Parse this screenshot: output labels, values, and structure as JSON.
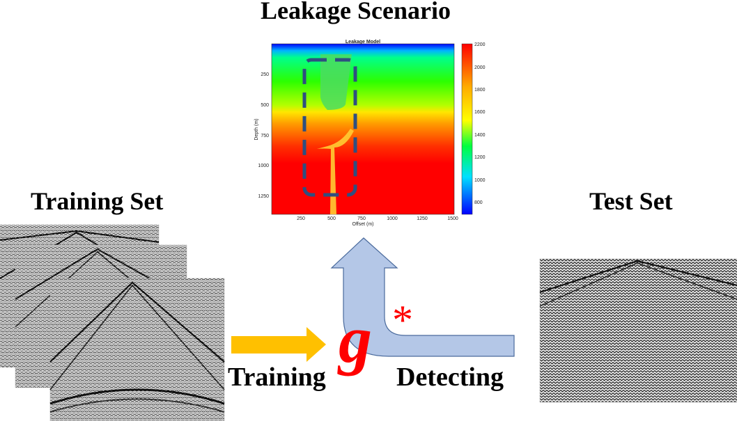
{
  "labels": {
    "title": "Leakage Scenario",
    "training_set": "Training Set",
    "test_set": "Test Set",
    "training": "Training",
    "detecting": "Detecting",
    "g_symbol": "g",
    "star": "*"
  },
  "model_plot": {
    "title": "Leakage Model",
    "xlabel": "Offset (m)",
    "ylabel": "Depth (m)",
    "xticks": [
      "250",
      "500",
      "750",
      "1000",
      "1250",
      "1500"
    ],
    "yticks": [
      "250",
      "500",
      "750",
      "1000",
      "1250"
    ],
    "colorbar_ticks": [
      "2200",
      "2000",
      "1800",
      "1600",
      "1400",
      "1200",
      "1000",
      "800"
    ]
  },
  "colors": {
    "arrow_train": "#FFC000",
    "arrow_detect": "#B4C7E7",
    "g_color": "#FF0000",
    "dash_box": "#2F4F80"
  }
}
